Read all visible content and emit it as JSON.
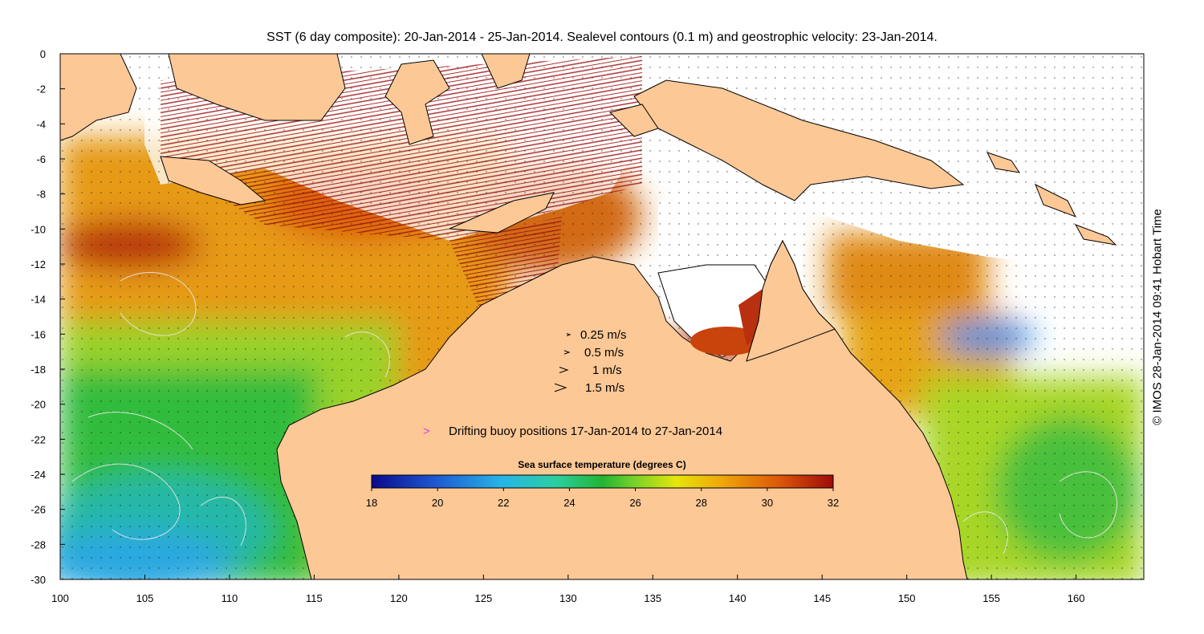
{
  "title": "SST (6 day composite): 20-Jan-2014 - 25-Jan-2014. Sealevel contours (0.1 m) and geostrophic velocity: 23-Jan-2014.",
  "credit": "© IMOS 28-Jan-2014 09:41 Hobart Time",
  "axes": {
    "x_ticks": [
      "100",
      "105",
      "110",
      "115",
      "120",
      "125",
      "130",
      "135",
      "140",
      "145",
      "150",
      "155",
      "160"
    ],
    "y_ticks": [
      "0",
      "-2",
      "-4",
      "-6",
      "-8",
      "-10",
      "-12",
      "-14",
      "-16",
      "-18",
      "-20",
      "-22",
      "-24",
      "-26",
      "-28",
      "-30"
    ],
    "lon_range": [
      100,
      164
    ],
    "lat_range": [
      -30,
      0
    ]
  },
  "velocity_legend": [
    {
      "label": "0.25 m/s",
      "speed": 0.25
    },
    {
      "label": "0.5 m/s",
      "speed": 0.5
    },
    {
      "label": "1 m/s",
      "speed": 1
    },
    {
      "label": "1.5 m/s",
      "speed": 1.5
    }
  ],
  "buoy_legend": {
    "symbol": ">",
    "label": "Drifting buoy positions 17-Jan-2014 to 27-Jan-2014",
    "color": "#e040e0"
  },
  "colorbar": {
    "title": "Sea surface temperature (degrees C)",
    "min": 18,
    "max": 32,
    "ticks": [
      "18",
      "20",
      "22",
      "24",
      "26",
      "28",
      "30",
      "32"
    ]
  },
  "colors": {
    "land": "#fcc896",
    "coast": "#000000",
    "no_data": "#ffffff",
    "contour": "#e8e8e8",
    "buoy": "#e040e0"
  }
}
